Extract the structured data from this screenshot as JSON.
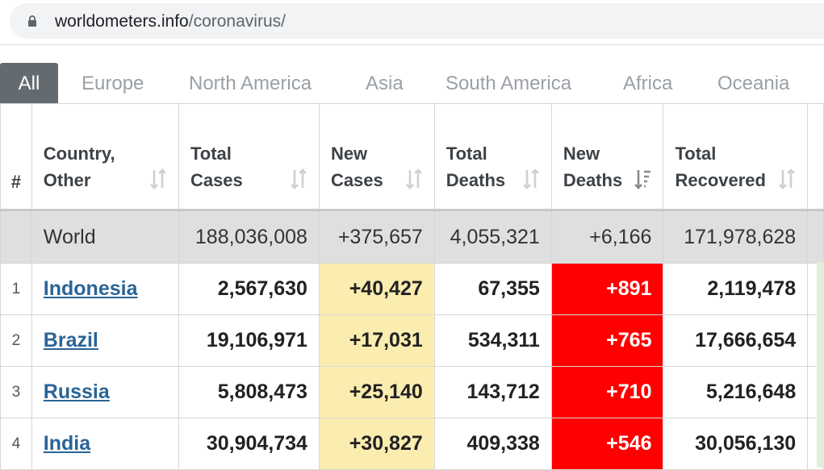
{
  "browser": {
    "url_host": "worldometers.info",
    "url_path": "/coronavirus/"
  },
  "tabs": [
    {
      "label": "All",
      "active": true
    },
    {
      "label": "Europe",
      "active": false
    },
    {
      "label": "North America",
      "active": false
    },
    {
      "label": "Asia",
      "active": false
    },
    {
      "label": "South America",
      "active": false
    },
    {
      "label": "Africa",
      "active": false
    },
    {
      "label": "Oceania",
      "active": false
    }
  ],
  "table": {
    "headers": {
      "num": "#",
      "country": "Country, Other",
      "total_cases": "Total Cases",
      "new_cases": "New Cases",
      "total_deaths": "Total Deaths",
      "new_deaths": "New Deaths",
      "total_recovered": "Total Recovered"
    },
    "world": {
      "country": "World",
      "total_cases": "188,036,008",
      "new_cases": "+375,657",
      "total_deaths": "4,055,321",
      "new_deaths": "+6,166",
      "total_recovered": "171,978,628"
    },
    "rows": [
      {
        "num": "1",
        "country": "Indonesia",
        "total_cases": "2,567,630",
        "new_cases": "+40,427",
        "total_deaths": "67,355",
        "new_deaths": "+891",
        "total_recovered": "2,119,478"
      },
      {
        "num": "2",
        "country": "Brazil",
        "total_cases": "19,106,971",
        "new_cases": "+17,031",
        "total_deaths": "534,311",
        "new_deaths": "+765",
        "total_recovered": "17,666,654"
      },
      {
        "num": "3",
        "country": "Russia",
        "total_cases": "5,808,473",
        "new_cases": "+25,140",
        "total_deaths": "143,712",
        "new_deaths": "+710",
        "total_recovered": "5,216,648"
      },
      {
        "num": "4",
        "country": "India",
        "total_cases": "30,904,734",
        "new_cases": "+30,827",
        "total_deaths": "409,338",
        "new_deaths": "+546",
        "total_recovered": "30,056,130"
      }
    ]
  },
  "colors": {
    "new_cases_bg": "#fbedb0",
    "new_deaths_bg": "#ff0000",
    "active_tab_bg": "#636a70",
    "link": "#2a6496"
  }
}
